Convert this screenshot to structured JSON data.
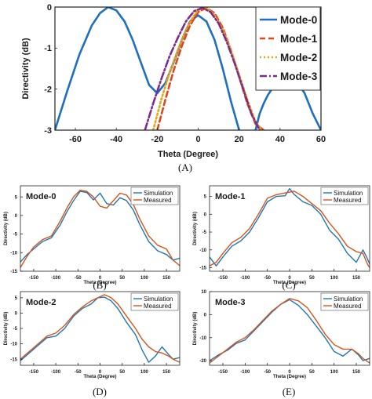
{
  "chart_data": [
    {
      "type": "line",
      "caption": "(A)",
      "xlabel": "Theta (Degree)",
      "ylabel": "Directivity (dB)",
      "xlim": [
        -70,
        60
      ],
      "ylim": [
        -3,
        0
      ],
      "xticks": [
        -60,
        -40,
        -20,
        0,
        20,
        40,
        60
      ],
      "yticks": [
        0,
        -1,
        -2,
        -3
      ],
      "grid": false,
      "legend_position": "top-right",
      "series": [
        {
          "name": "Mode-0",
          "color": "#1f6fbf",
          "dash": "solid",
          "x": [
            -70,
            -64,
            -58,
            -52,
            -48,
            -44,
            -40,
            -36,
            -32,
            -28,
            -24,
            -20,
            -16,
            -12,
            -8,
            -4,
            0,
            4,
            8,
            12,
            16,
            20,
            24,
            28,
            30,
            32,
            34,
            36,
            38,
            40,
            44,
            46,
            48,
            52,
            56,
            60
          ],
          "y": [
            -3.0,
            -2.05,
            -1.15,
            -0.45,
            -0.15,
            0.0,
            -0.08,
            -0.35,
            -0.8,
            -1.35,
            -1.9,
            -2.1,
            -1.85,
            -1.35,
            -0.8,
            -0.35,
            -0.2,
            -0.35,
            -0.8,
            -1.5,
            -2.3,
            -3.0,
            -3.6,
            -3.0,
            -2.6,
            -2.35,
            -2.15,
            -2.0,
            -1.88,
            -1.82,
            -1.76,
            -1.75,
            -1.8,
            -2.1,
            -2.6,
            -3.0
          ]
        },
        {
          "name": "Mode-1",
          "color": "#d94a1e",
          "dash": "dashed",
          "x": [
            -20,
            -16,
            -12,
            -8,
            -4,
            0,
            4,
            8,
            12,
            16,
            20,
            24,
            28,
            32
          ],
          "y": [
            -3.0,
            -2.25,
            -1.55,
            -0.95,
            -0.45,
            -0.12,
            -0.02,
            -0.15,
            -0.5,
            -1.05,
            -1.7,
            -2.35,
            -2.85,
            -3.0
          ]
        },
        {
          "name": "Mode-2",
          "color": "#e8a317",
          "dash": "dotted",
          "x": [
            -22,
            -18,
            -14,
            -10,
            -6,
            -2,
            0,
            4,
            8,
            12,
            16,
            20,
            24,
            28,
            31
          ],
          "y": [
            -3.0,
            -2.25,
            -1.6,
            -1.05,
            -0.55,
            -0.2,
            -0.07,
            0.0,
            -0.2,
            -0.55,
            -1.05,
            -1.65,
            -2.25,
            -2.8,
            -3.0
          ]
        },
        {
          "name": "Mode-3",
          "color": "#7b2d8e",
          "dash": "dashdot",
          "x": [
            -26,
            -22,
            -18,
            -14,
            -10,
            -6,
            -2,
            2,
            6,
            10,
            14,
            18,
            22,
            26,
            30
          ],
          "y": [
            -3.0,
            -2.35,
            -1.75,
            -1.2,
            -0.75,
            -0.35,
            -0.1,
            -0.02,
            -0.12,
            -0.4,
            -0.85,
            -1.4,
            -2.0,
            -2.6,
            -3.0
          ]
        }
      ]
    },
    {
      "type": "line",
      "caption": "(B)",
      "title": "Mode-0",
      "xlabel": "Theta (Degree)",
      "ylabel": "Directivity (dB)",
      "xlim": [
        -180,
        180
      ],
      "ylim": [
        -15,
        8
      ],
      "xticks": [
        -150,
        -100,
        -50,
        0,
        50,
        100,
        150
      ],
      "yticks": [
        5,
        0,
        -5,
        -10,
        -15
      ],
      "legend_position": "top-right",
      "series": [
        {
          "name": "Simulation",
          "color": "#1f77b4",
          "x": [
            -180,
            -165,
            -150,
            -130,
            -110,
            -90,
            -75,
            -60,
            -45,
            -30,
            -15,
            0,
            15,
            30,
            45,
            60,
            75,
            90,
            110,
            130,
            150,
            165,
            180
          ],
          "y": [
            -12.5,
            -10.5,
            -9.0,
            -7.0,
            -6.0,
            -2.5,
            1.0,
            4.0,
            6.5,
            6.2,
            4.2,
            6.0,
            3.2,
            2.8,
            4.8,
            4.0,
            1.5,
            -2.5,
            -7.0,
            -9.5,
            -10.5,
            -12.0,
            -11.5
          ]
        },
        {
          "name": "Measured",
          "color": "#d95319",
          "x": [
            -180,
            -165,
            -150,
            -130,
            -110,
            -90,
            -75,
            -60,
            -45,
            -30,
            -15,
            0,
            15,
            30,
            45,
            60,
            75,
            90,
            110,
            130,
            150,
            165,
            180
          ],
          "y": [
            -14.0,
            -11.0,
            -8.5,
            -6.5,
            -5.5,
            -1.5,
            2.0,
            5.0,
            6.8,
            6.5,
            5.0,
            2.5,
            2.0,
            4.0,
            6.0,
            5.5,
            3.0,
            -1.0,
            -5.5,
            -8.0,
            -9.0,
            -12.0,
            -13.5
          ]
        }
      ]
    },
    {
      "type": "line",
      "caption": "(C)",
      "title": "Mode-1",
      "xlabel": "Theta (Degree)",
      "ylabel": "Directivity (dB)",
      "xlim": [
        -180,
        180
      ],
      "ylim": [
        -16,
        8
      ],
      "xticks": [
        -150,
        -100,
        -50,
        0,
        50,
        100,
        150
      ],
      "yticks": [
        5,
        0,
        -5,
        -10,
        -15
      ],
      "legend_position": "top-right",
      "series": [
        {
          "name": "Simulation",
          "color": "#1f77b4",
          "x": [
            -180,
            -165,
            -150,
            -130,
            -110,
            -90,
            -70,
            -50,
            -30,
            -10,
            0,
            10,
            30,
            50,
            70,
            90,
            110,
            130,
            150,
            165,
            175,
            180
          ],
          "y": [
            -12.0,
            -14.5,
            -12.0,
            -9.0,
            -7.5,
            -5.0,
            -1.0,
            3.5,
            5.0,
            5.2,
            7.2,
            5.6,
            3.5,
            2.5,
            0.0,
            -4.5,
            -7.0,
            -11.0,
            -13.5,
            -10.0,
            -12.5,
            -14.0
          ]
        },
        {
          "name": "Measured",
          "color": "#d95319",
          "x": [
            -180,
            -165,
            -150,
            -130,
            -110,
            -90,
            -70,
            -50,
            -30,
            -10,
            0,
            10,
            30,
            50,
            70,
            90,
            110,
            130,
            150,
            165,
            175,
            180
          ],
          "y": [
            -14.5,
            -13.5,
            -11.0,
            -8.0,
            -6.5,
            -4.0,
            0.0,
            4.5,
            5.5,
            6.0,
            6.2,
            6.5,
            5.0,
            3.0,
            1.0,
            -2.5,
            -5.5,
            -9.0,
            -10.5,
            -11.0,
            -14.0,
            -15.0
          ]
        }
      ]
    },
    {
      "type": "line",
      "caption": "(D)",
      "title": "Mode-2",
      "xlabel": "Theta (Degree)",
      "ylabel": "Directivity (dB)",
      "xlim": [
        -180,
        180
      ],
      "ylim": [
        -17,
        7
      ],
      "xticks": [
        -150,
        -100,
        -50,
        0,
        50,
        100,
        150
      ],
      "yticks": [
        5,
        0,
        -5,
        -10,
        -15
      ],
      "legend_position": "top-right",
      "series": [
        {
          "name": "Simulation",
          "color": "#1f77b4",
          "x": [
            -180,
            -160,
            -140,
            -120,
            -100,
            -80,
            -60,
            -40,
            -20,
            -5,
            10,
            25,
            40,
            60,
            80,
            95,
            110,
            125,
            140,
            155,
            165,
            180
          ],
          "y": [
            -15.5,
            -13.0,
            -10.5,
            -8.0,
            -7.5,
            -5.0,
            -1.0,
            1.5,
            3.0,
            5.0,
            5.2,
            4.0,
            1.5,
            -3.0,
            -7.0,
            -12.0,
            -16.0,
            -14.0,
            -11.0,
            -13.5,
            -15.0,
            -14.5
          ]
        },
        {
          "name": "Measured",
          "color": "#d95319",
          "x": [
            -180,
            -160,
            -140,
            -120,
            -100,
            -80,
            -60,
            -40,
            -20,
            -5,
            10,
            25,
            40,
            60,
            80,
            95,
            110,
            125,
            140,
            155,
            165,
            180
          ],
          "y": [
            -15.0,
            -12.5,
            -10.0,
            -7.5,
            -6.5,
            -4.0,
            -0.5,
            2.0,
            4.0,
            5.0,
            6.0,
            5.0,
            3.0,
            -1.0,
            -5.0,
            -8.5,
            -11.0,
            -12.5,
            -13.0,
            -14.0,
            -15.0,
            -16.0
          ]
        }
      ]
    },
    {
      "type": "line",
      "caption": "(E)",
      "title": "Mode-3",
      "xlabel": "Theta (Degree)",
      "ylabel": "Directivity (dB)",
      "xlim": [
        -180,
        180
      ],
      "ylim": [
        -22,
        10
      ],
      "xticks": [
        -150,
        -100,
        -50,
        0,
        50,
        100,
        150
      ],
      "yticks": [
        10,
        0,
        -10,
        -20
      ],
      "legend_position": "top-right",
      "series": [
        {
          "name": "Simulation",
          "color": "#1f77b4",
          "x": [
            -180,
            -160,
            -140,
            -120,
            -100,
            -80,
            -60,
            -40,
            -20,
            0,
            20,
            40,
            60,
            80,
            100,
            120,
            140,
            155,
            165,
            180
          ],
          "y": [
            -20.0,
            -17.5,
            -15.5,
            -12.5,
            -11.0,
            -7.0,
            -3.0,
            1.0,
            4.5,
            6.5,
            4.0,
            0.0,
            -5.0,
            -10.0,
            -16.0,
            -18.0,
            -15.0,
            -17.5,
            -20.0,
            -19.0
          ]
        },
        {
          "name": "Measured",
          "color": "#d95319",
          "x": [
            -180,
            -160,
            -140,
            -120,
            -100,
            -80,
            -60,
            -40,
            -20,
            0,
            20,
            40,
            60,
            80,
            100,
            120,
            140,
            155,
            165,
            180
          ],
          "y": [
            -21.0,
            -18.0,
            -15.0,
            -12.0,
            -10.0,
            -6.5,
            -2.5,
            1.5,
            4.5,
            7.0,
            6.0,
            3.0,
            -2.5,
            -8.5,
            -13.0,
            -15.0,
            -15.0,
            -17.0,
            -19.0,
            -21.0
          ]
        }
      ]
    }
  ]
}
